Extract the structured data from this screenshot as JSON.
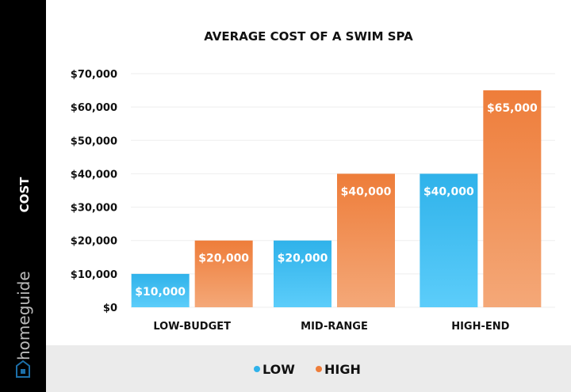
{
  "brand": "homeguide",
  "colors": {
    "low": "#2fb2ea",
    "low_light": "#5ccdfa",
    "high": "#ee7d3a",
    "high_light": "#f4a878",
    "sidebar": "#000000",
    "legend_bg": "#ebebeb"
  },
  "chart_data": {
    "type": "bar",
    "title": "AVERAGE COST OF A SWIM SPA",
    "ylabel": "COST",
    "xlabel": "",
    "categories": [
      "LOW-BUDGET",
      "MID-RANGE",
      "HIGH-END"
    ],
    "series": [
      {
        "name": "LOW",
        "values": [
          10000,
          20000,
          40000
        ],
        "labels": [
          "$10,000",
          "$20,000",
          "$40,000"
        ]
      },
      {
        "name": "HIGH",
        "values": [
          20000,
          40000,
          65000
        ],
        "labels": [
          "$20,000",
          "$40,000",
          "$65,000"
        ]
      }
    ],
    "ylim": [
      0,
      70000
    ],
    "yticks": [
      0,
      10000,
      20000,
      30000,
      40000,
      50000,
      60000,
      70000
    ],
    "ytick_labels": [
      "$0",
      "$10,000",
      "$20,000",
      "$30,000",
      "$40,000",
      "$50,000",
      "$60,000",
      "$70,000"
    ],
    "grid": true,
    "legend_placement": "bottom"
  }
}
